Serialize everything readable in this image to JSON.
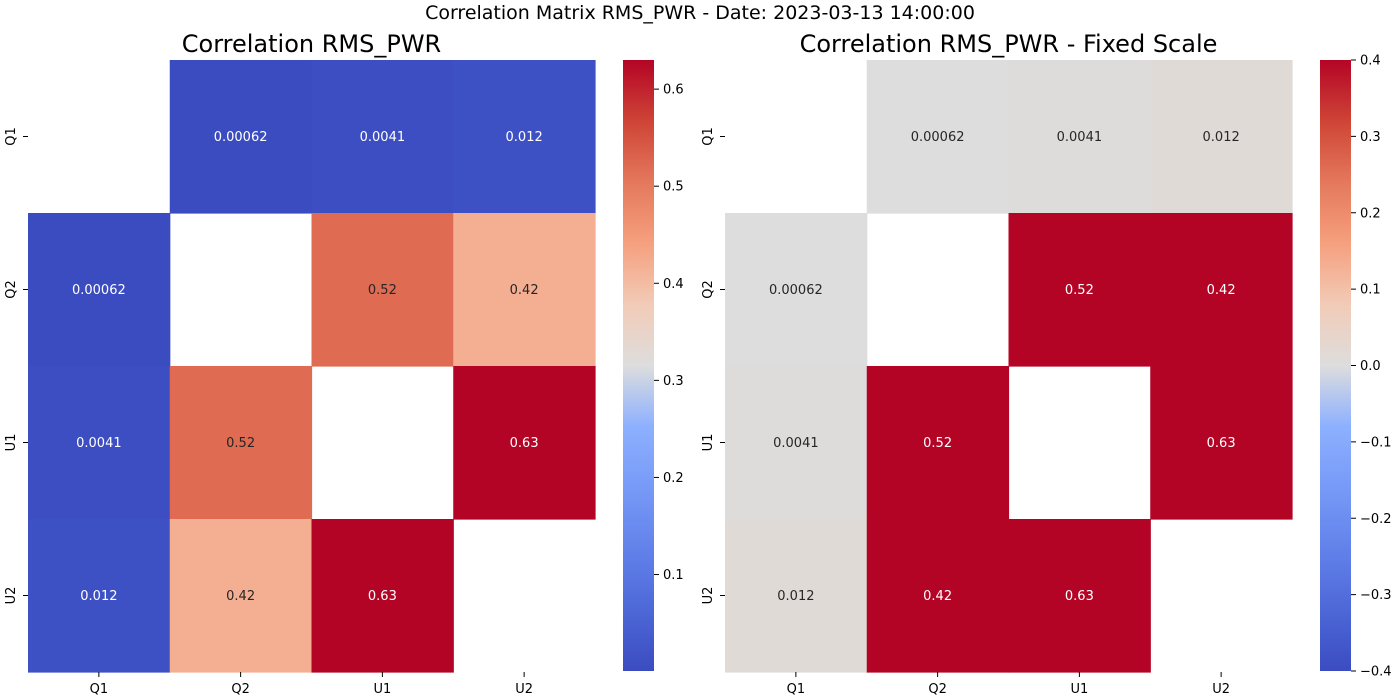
{
  "figure": {
    "suptitle": "Correlation Matrix RMS_PWR - Date: 2023-03-13 14:00:00"
  },
  "chart_data": [
    {
      "type": "heatmap",
      "title": "Correlation RMS_PWR",
      "xlabel": "",
      "ylabel": "",
      "x_categories": [
        "Q1",
        "Q2",
        "U1",
        "U2"
      ],
      "y_categories": [
        "Q1",
        "Q2",
        "U1",
        "U2"
      ],
      "matrix": [
        [
          null,
          0.00062,
          0.0041,
          0.012
        ],
        [
          0.00062,
          null,
          0.52,
          0.42
        ],
        [
          0.0041,
          0.52,
          null,
          0.63
        ],
        [
          0.012,
          0.42,
          0.63,
          null
        ]
      ],
      "annotations": [
        [
          "",
          "0.00062",
          "0.0041",
          "0.012"
        ],
        [
          "0.00062",
          "",
          "0.52",
          "0.42"
        ],
        [
          "0.0041",
          "0.52",
          "",
          "0.63"
        ],
        [
          "0.012",
          "0.42",
          "0.63",
          ""
        ]
      ],
      "colormap": "coolwarm",
      "colorbar": {
        "vmin": 0.00062,
        "vmax": 0.63,
        "ticks": [
          0.1,
          0.2,
          0.3,
          0.4,
          0.5,
          0.6
        ],
        "tick_labels": [
          "0.1",
          "0.2",
          "0.3",
          "0.4",
          "0.5",
          "0.6"
        ]
      },
      "diagonal": "masked (blank)"
    },
    {
      "type": "heatmap",
      "title": "Correlation RMS_PWR - Fixed Scale",
      "xlabel": "",
      "ylabel": "",
      "x_categories": [
        "Q1",
        "Q2",
        "U1",
        "U2"
      ],
      "y_categories": [
        "Q1",
        "Q2",
        "U1",
        "U2"
      ],
      "matrix": [
        [
          null,
          0.00062,
          0.0041,
          0.012
        ],
        [
          0.00062,
          null,
          0.52,
          0.42
        ],
        [
          0.0041,
          0.52,
          null,
          0.63
        ],
        [
          0.012,
          0.42,
          0.63,
          null
        ]
      ],
      "annotations": [
        [
          "",
          "0.00062",
          "0.0041",
          "0.012"
        ],
        [
          "0.00062",
          "",
          "0.52",
          "0.42"
        ],
        [
          "0.0041",
          "0.52",
          "",
          "0.63"
        ],
        [
          "0.012",
          "0.42",
          "0.63",
          ""
        ]
      ],
      "colormap": "coolwarm",
      "colorbar": {
        "vmin": -0.4,
        "vmax": 0.4,
        "ticks": [
          0.4,
          0.3,
          0.2,
          0.1,
          0.0,
          -0.1,
          -0.2,
          -0.3,
          -0.4
        ],
        "tick_labels": [
          "0.4",
          "0.3",
          "0.2",
          "0.1",
          "0.0",
          "−0.1",
          "−0.2",
          "−0.3",
          "−0.4"
        ]
      },
      "diagonal": "masked (blank)"
    }
  ]
}
